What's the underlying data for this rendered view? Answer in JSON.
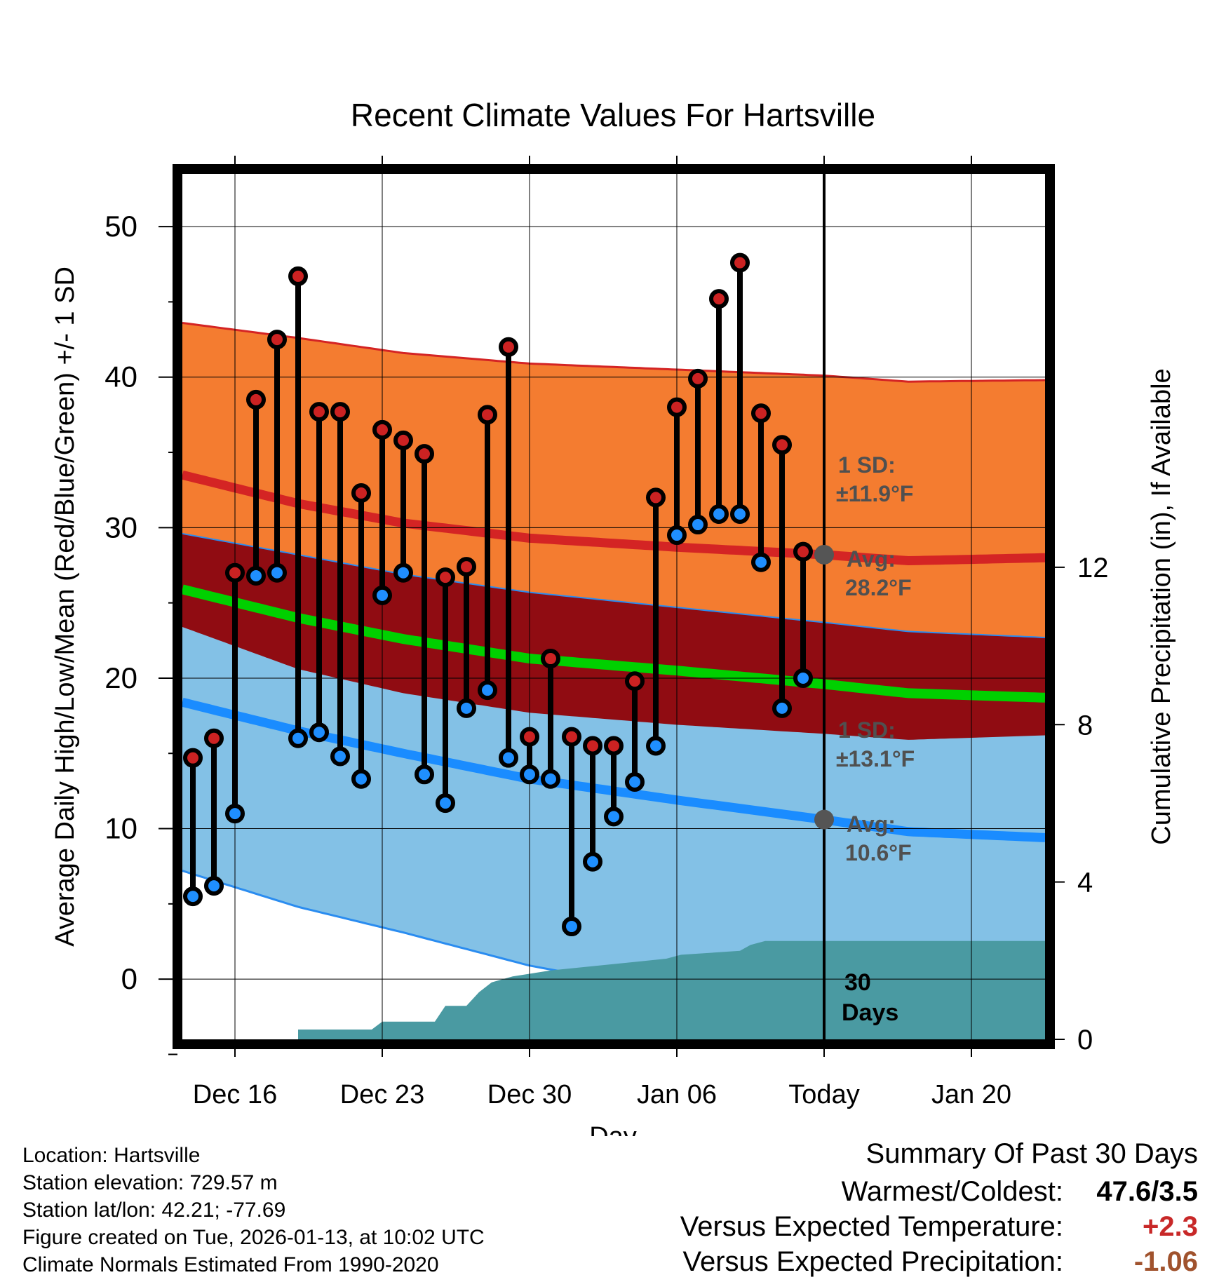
{
  "chart_data": {
    "type": "line",
    "title": "Recent Climate Values For Hartsville",
    "xlabel": "Day",
    "ylabel": "Average Daily High/Low/Mean (Red/Blue/Green) +/- 1 SD",
    "y2label": "Cumulative Precipitation (in), If Available",
    "xlim": [
      -2.5,
      38.5
    ],
    "ylim": [
      -4,
      53.5
    ],
    "y2lim": [
      0,
      22
    ],
    "x_ticks": [
      {
        "x": 0,
        "label": "Dec 16"
      },
      {
        "x": 7,
        "label": "Dec 23"
      },
      {
        "x": 14,
        "label": "Dec 30"
      },
      {
        "x": 21,
        "label": "Jan 06"
      },
      {
        "x": 28,
        "label": "Today"
      },
      {
        "x": 35,
        "label": "Jan 20"
      }
    ],
    "y_ticks": [
      0,
      10,
      20,
      30,
      40,
      50
    ],
    "y2_ticks": [
      0,
      4,
      8,
      12
    ],
    "today_x": 28,
    "normals_x": [
      -2.5,
      3,
      8,
      14,
      21,
      28,
      32,
      38.5
    ],
    "normal_high": [
      33.5,
      31.6,
      30.3,
      29.3,
      28.7,
      28.2,
      27.8,
      28.0
    ],
    "normal_high_sd": [
      10.1,
      11.0,
      11.3,
      11.6,
      11.8,
      11.9,
      11.9,
      11.8
    ],
    "normal_low": [
      18.4,
      16.5,
      15.0,
      13.3,
      11.9,
      10.6,
      9.8,
      9.4
    ],
    "normal_low_sd": [
      11.2,
      11.7,
      11.9,
      12.4,
      12.8,
      13.1,
      13.3,
      13.3
    ],
    "normal_mean": [
      25.9,
      24.0,
      22.6,
      21.3,
      20.5,
      19.6,
      19.0,
      18.7
    ],
    "daily": [
      {
        "x": -2,
        "high": 14.7,
        "low": 5.5
      },
      {
        "x": -1,
        "high": 16.0,
        "low": 6.2
      },
      {
        "x": 0,
        "high": 27.0,
        "low": 11.0
      },
      {
        "x": 1,
        "high": 38.5,
        "low": 26.8
      },
      {
        "x": 2,
        "high": 42.5,
        "low": 27.0
      },
      {
        "x": 3,
        "high": 46.7,
        "low": 16.0
      },
      {
        "x": 4,
        "high": 37.7,
        "low": 16.4
      },
      {
        "x": 5,
        "high": 37.7,
        "low": 14.8
      },
      {
        "x": 6,
        "high": 32.3,
        "low": 13.3
      },
      {
        "x": 7,
        "high": 36.5,
        "low": 25.5
      },
      {
        "x": 8,
        "high": 35.8,
        "low": 27.0
      },
      {
        "x": 9,
        "high": 34.9,
        "low": 13.6
      },
      {
        "x": 10,
        "high": 26.7,
        "low": 11.7
      },
      {
        "x": 11,
        "high": 27.4,
        "low": 18.0
      },
      {
        "x": 12,
        "high": 37.5,
        "low": 19.2
      },
      {
        "x": 13,
        "high": 42.0,
        "low": 14.7
      },
      {
        "x": 14,
        "high": 16.1,
        "low": 13.6
      },
      {
        "x": 15,
        "high": 21.3,
        "low": 13.3
      },
      {
        "x": 16,
        "high": 16.1,
        "low": 3.5
      },
      {
        "x": 17,
        "high": 15.5,
        "low": 7.8
      },
      {
        "x": 18,
        "high": 15.5,
        "low": 10.8
      },
      {
        "x": 19,
        "high": 19.8,
        "low": 13.1
      },
      {
        "x": 20,
        "high": 32.0,
        "low": 15.5
      },
      {
        "x": 21,
        "high": 38.0,
        "low": 29.5
      },
      {
        "x": 22,
        "high": 39.9,
        "low": 30.2
      },
      {
        "x": 23,
        "high": 45.2,
        "low": 30.9
      },
      {
        "x": 24,
        "high": 47.6,
        "low": 30.9
      },
      {
        "x": 25,
        "high": 37.6,
        "low": 27.7
      },
      {
        "x": 26,
        "high": 35.5,
        "low": 18.0
      },
      {
        "x": 27,
        "high": 28.4,
        "low": 20.0
      }
    ],
    "precip_x": [
      3.0,
      6.5,
      7.0,
      9.5,
      10.0,
      11.0,
      11.6,
      12.2,
      13.2,
      15.0,
      20.5,
      21.2,
      24.0,
      24.5,
      25.2,
      38.5
    ],
    "precip_cum": [
      0.25,
      0.25,
      0.45,
      0.45,
      0.85,
      0.85,
      1.2,
      1.45,
      1.6,
      1.75,
      2.05,
      2.15,
      2.25,
      2.4,
      2.5,
      2.5
    ],
    "annotations": {
      "high_sd_label": "1 SD:",
      "high_sd_value": "±11.9°F",
      "high_avg_label": "Avg:",
      "high_avg_value": "28.2°F",
      "low_sd_label": "1 SD:",
      "low_sd_value": "±13.1°F",
      "low_avg_label": "Avg:",
      "low_avg_value": "10.6°F",
      "period_number": "30",
      "period_unit": "Days"
    },
    "colors": {
      "high_band": "#f47c30",
      "high_line": "#d42424",
      "overlap_band": "#900c12",
      "mean_line": "#00d000",
      "low_band": "#83c1e6",
      "low_line": "#1a8cff",
      "low_band_edge": "#2a8cf0",
      "precip": "#4a9aa2",
      "high_marker": "#cc2222",
      "low_marker": "#1f8fff",
      "annotation_text": "#505050"
    }
  },
  "footer": {
    "location": "Location: Hartsville",
    "elevation": "Station elevation: 729.57 m",
    "latlon": "Station lat/lon: 42.21; -77.69",
    "created": "Figure created on Tue, 2026-01-13, at 10:02 UTC",
    "normals": "Climate Normals Estimated From 1990-2020"
  },
  "summary": {
    "title": "Summary Of Past 30 Days",
    "warmest_label": "Warmest/Coldest:",
    "warmest_value": "47.6/3.5",
    "temp_label": "Versus Expected Temperature:",
    "temp_value": "+2.3",
    "temp_color": "#c82828",
    "precip_label": "Versus Expected Precipitation:",
    "precip_value": "-1.06",
    "precip_color": "#a0522d"
  }
}
